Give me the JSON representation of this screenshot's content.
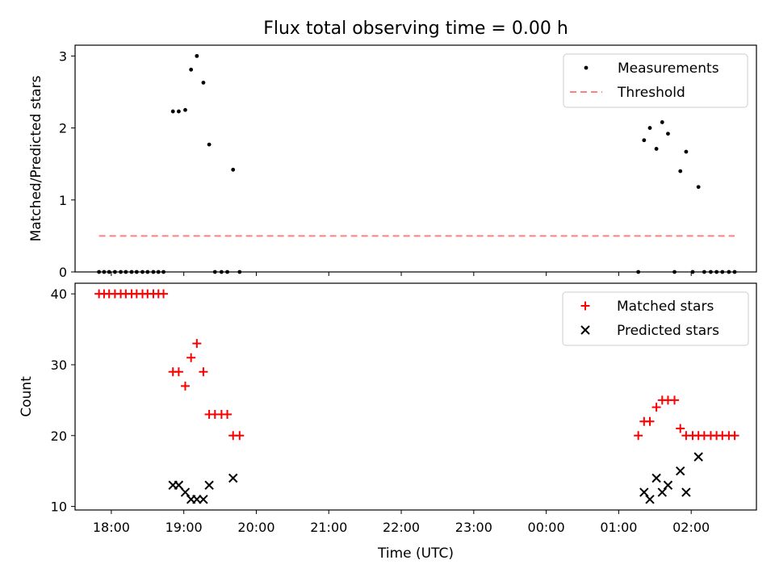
{
  "figure": {
    "title": "Flux total observing time = 0.00 h"
  },
  "chart_data": [
    {
      "type": "scatter",
      "ylabel": "Matched/Predicted stars",
      "xlabel": "",
      "xlim": [
        -0.5,
        8.9
      ],
      "ylim": [
        0,
        3.15
      ],
      "yticks": [
        0,
        1,
        2,
        3
      ],
      "grid": false,
      "legend": "top-right",
      "legend_entries": [
        "Measurements",
        "Threshold"
      ],
      "series": [
        {
          "name": "Measurements",
          "color": "#000000",
          "marker": "dot",
          "points": [
            [
              -0.17,
              0
            ],
            [
              -0.1,
              0
            ],
            [
              -0.03,
              0
            ],
            [
              0.05,
              0
            ],
            [
              0.13,
              0
            ],
            [
              0.2,
              0
            ],
            [
              0.28,
              0
            ],
            [
              0.35,
              0
            ],
            [
              0.43,
              0
            ],
            [
              0.5,
              0
            ],
            [
              0.58,
              0
            ],
            [
              0.65,
              0
            ],
            [
              0.72,
              0
            ],
            [
              0.85,
              2.23
            ],
            [
              0.93,
              2.23
            ],
            [
              1.02,
              2.25
            ],
            [
              1.1,
              2.81
            ],
            [
              1.18,
              3.0
            ],
            [
              1.27,
              2.63
            ],
            [
              1.35,
              1.77
            ],
            [
              1.43,
              0
            ],
            [
              1.52,
              0
            ],
            [
              1.6,
              0
            ],
            [
              1.68,
              1.42
            ],
            [
              1.77,
              0
            ],
            [
              7.27,
              0
            ],
            [
              7.35,
              1.83
            ],
            [
              7.43,
              2.0
            ],
            [
              7.52,
              1.71
            ],
            [
              7.6,
              2.08
            ],
            [
              7.68,
              1.92
            ],
            [
              7.77,
              0
            ],
            [
              7.85,
              1.4
            ],
            [
              7.93,
              1.67
            ],
            [
              8.02,
              0
            ],
            [
              8.1,
              1.18
            ],
            [
              8.18,
              0
            ],
            [
              8.27,
              0
            ],
            [
              8.35,
              0
            ],
            [
              8.43,
              0
            ],
            [
              8.52,
              0
            ],
            [
              8.6,
              0
            ]
          ]
        },
        {
          "name": "Threshold",
          "color": "#ff8080",
          "style": "dashed",
          "points": [
            [
              -0.17,
              0.5
            ],
            [
              8.6,
              0.5
            ]
          ]
        }
      ]
    },
    {
      "type": "scatter",
      "ylabel": "Count",
      "xlabel": "Time (UTC)",
      "xlim": [
        -0.5,
        8.9
      ],
      "ylim": [
        9.5,
        41.5
      ],
      "yticks": [
        10,
        20,
        30,
        40
      ],
      "xticks": [
        0,
        1,
        2,
        3,
        4,
        5,
        6,
        7,
        8
      ],
      "xtick_labels": [
        "18:00",
        "19:00",
        "20:00",
        "21:00",
        "22:00",
        "23:00",
        "00:00",
        "01:00",
        "02:00"
      ],
      "grid": false,
      "legend": "top-right",
      "legend_entries": [
        "Matched stars",
        "Predicted stars"
      ],
      "series": [
        {
          "name": "Matched stars",
          "color": "#ff0000",
          "marker": "plus",
          "points": [
            [
              -0.17,
              40
            ],
            [
              -0.1,
              40
            ],
            [
              -0.03,
              40
            ],
            [
              0.05,
              40
            ],
            [
              0.13,
              40
            ],
            [
              0.2,
              40
            ],
            [
              0.28,
              40
            ],
            [
              0.35,
              40
            ],
            [
              0.43,
              40
            ],
            [
              0.5,
              40
            ],
            [
              0.58,
              40
            ],
            [
              0.65,
              40
            ],
            [
              0.72,
              40
            ],
            [
              0.85,
              29
            ],
            [
              0.93,
              29
            ],
            [
              1.02,
              27
            ],
            [
              1.1,
              31
            ],
            [
              1.18,
              33
            ],
            [
              1.27,
              29
            ],
            [
              1.35,
              23
            ],
            [
              1.43,
              23
            ],
            [
              1.52,
              23
            ],
            [
              1.6,
              23
            ],
            [
              1.68,
              20
            ],
            [
              1.77,
              20
            ],
            [
              7.27,
              20
            ],
            [
              7.35,
              22
            ],
            [
              7.43,
              22
            ],
            [
              7.52,
              24
            ],
            [
              7.6,
              25
            ],
            [
              7.68,
              25
            ],
            [
              7.77,
              25
            ],
            [
              7.85,
              21
            ],
            [
              7.93,
              20
            ],
            [
              8.02,
              20
            ],
            [
              8.1,
              20
            ],
            [
              8.18,
              20
            ],
            [
              8.27,
              20
            ],
            [
              8.35,
              20
            ],
            [
              8.43,
              20
            ],
            [
              8.52,
              20
            ],
            [
              8.6,
              20
            ]
          ]
        },
        {
          "name": "Predicted stars",
          "color": "#000000",
          "marker": "x",
          "points": [
            [
              0.85,
              13
            ],
            [
              0.93,
              13
            ],
            [
              1.02,
              12
            ],
            [
              1.1,
              11
            ],
            [
              1.18,
              11
            ],
            [
              1.27,
              11
            ],
            [
              1.35,
              13
            ],
            [
              1.68,
              14
            ],
            [
              7.35,
              12
            ],
            [
              7.43,
              11
            ],
            [
              7.52,
              14
            ],
            [
              7.6,
              12
            ],
            [
              7.68,
              13
            ],
            [
              7.85,
              15
            ],
            [
              7.93,
              12
            ],
            [
              8.1,
              17
            ]
          ]
        }
      ]
    }
  ]
}
